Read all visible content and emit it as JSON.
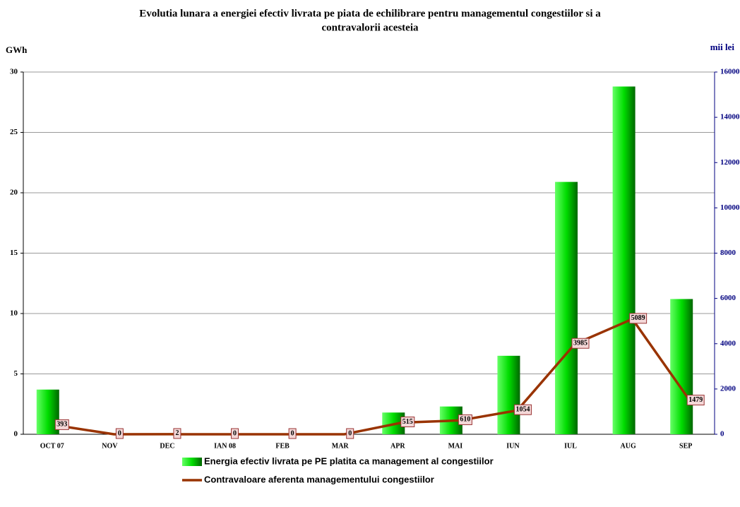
{
  "chart_data": {
    "type": "bar",
    "title": [
      "Evolutia lunara a energiei efectiv livrata pe piata de echilibrare pentru managementul congestiilor si a",
      "contravalorii acesteia"
    ],
    "y_label": "GWh",
    "y2_label": "mii lei",
    "categories": [
      "OCT 07",
      "NOV",
      "DEC",
      "IAN 08",
      "FEB",
      "MAR",
      "APR",
      "MAI",
      "IUN",
      "IUL",
      "AUG",
      "SEP"
    ],
    "series": [
      {
        "name": "Energia efectiv livrata pe PE platita ca management al congestiilor",
        "type": "bar",
        "color": "#00cc00",
        "values": [
          3.7,
          0,
          0,
          0,
          0,
          0,
          1.8,
          2.3,
          6.5,
          20.9,
          28.8,
          11.2
        ]
      },
      {
        "name": "Contravaloare aferenta managementului congestiilor",
        "type": "line",
        "axis": "y2",
        "color": "#993300",
        "values": [
          393,
          0,
          2,
          0,
          0,
          0,
          515,
          610,
          1054,
          3985,
          5089,
          1479
        ]
      }
    ],
    "ylim": [
      0,
      30
    ],
    "yticks": [
      0,
      5,
      10,
      15,
      20,
      25,
      30
    ],
    "y2lim": [
      0,
      16000
    ],
    "y2ticks": [
      0,
      2000,
      4000,
      6000,
      8000,
      10000,
      12000,
      14000,
      16000
    ],
    "grid": true,
    "legend": "bottom"
  }
}
